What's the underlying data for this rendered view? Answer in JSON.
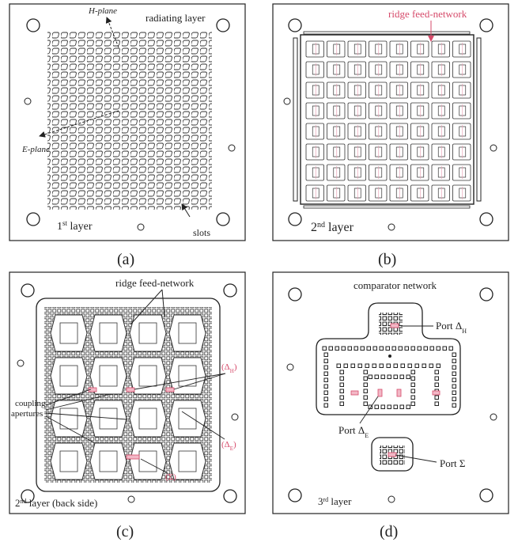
{
  "panels": {
    "a": {
      "caption": "(a)",
      "title": "radiating layer",
      "layer_num": "1",
      "layer_sup": "st",
      "layer_word": " layer",
      "h_plane": "H-plane",
      "e_plane": "E-plane",
      "slots_label": "slots"
    },
    "b": {
      "caption": "(b)",
      "feed_label": "ridge feed-network",
      "layer_num": "2",
      "layer_sup": "nd",
      "layer_word": " layer"
    },
    "c": {
      "caption": "(c)",
      "feed_label": "ridge feed-network",
      "coupling_line1": "coupling",
      "coupling_line2": "apertures",
      "delta_h": "(Δ",
      "delta_h_sub": "H",
      "delta_e": "(Δ",
      "delta_e_sub": "E",
      "sigma": "(Σ)",
      "close_paren": ")",
      "layer_num": "2",
      "layer_sup": "nd",
      "layer_word": " layer (back side)"
    },
    "d": {
      "caption": "(d)",
      "title": "comparator network",
      "port_dh": "Port Δ",
      "port_dh_sub": "H",
      "port_de": "Port Δ",
      "port_de_sub": "E",
      "port_sigma": "Port Σ",
      "layer_num": "3",
      "layer_sup": "rd",
      "layer_word": " layer"
    }
  },
  "colors": {
    "outline": "#222222",
    "accent": "#d64a6a"
  }
}
